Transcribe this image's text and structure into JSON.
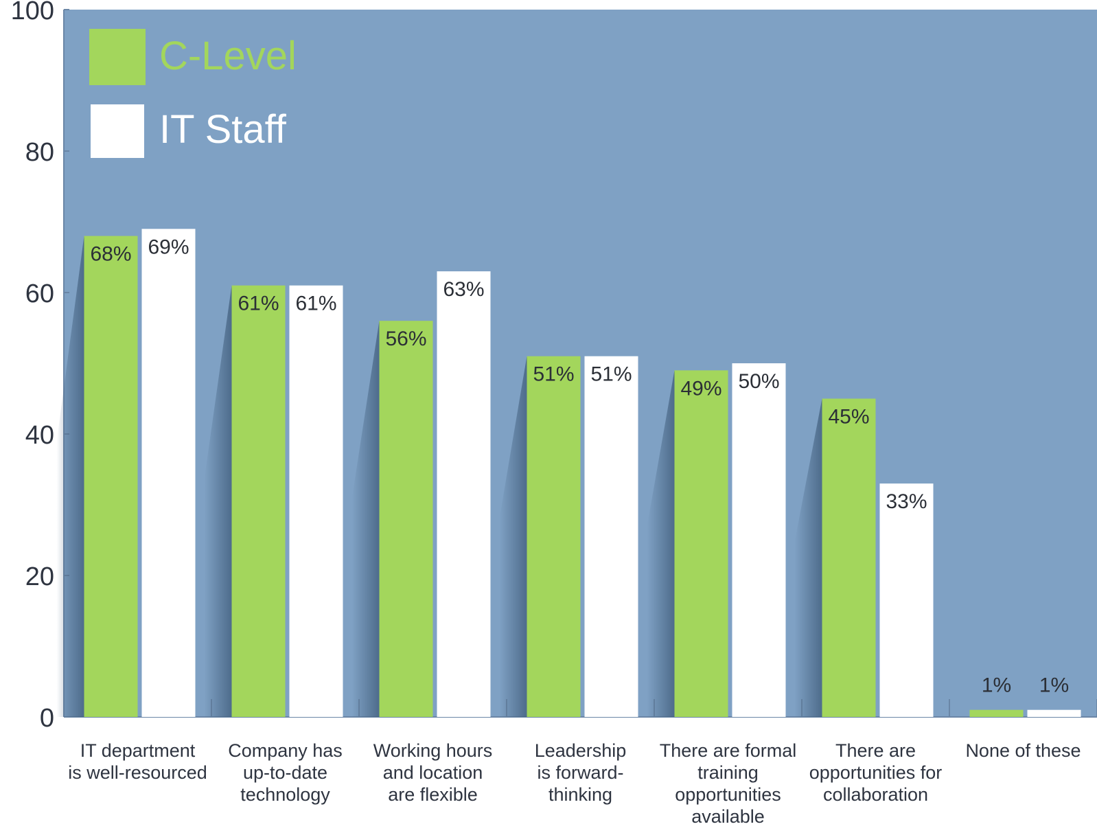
{
  "chart_data": {
    "type": "bar",
    "ylim": [
      0,
      100
    ],
    "yticks": [
      0,
      20,
      40,
      60,
      80,
      100
    ],
    "grid": false,
    "legend_position": "top-left",
    "categories": [
      "IT department\nis well-resourced",
      "Company has\nup-to-date\ntechnology",
      "Working hours\nand location\nare flexible",
      "Leadership\nis forward-\nthinking",
      "There are formal\ntraining\nopportunities\navailable",
      "There are\nopportunities for\ncollaboration",
      "None of these"
    ],
    "series": [
      {
        "name": "C-Level",
        "color": "#a3d65c",
        "values": [
          68,
          61,
          56,
          51,
          49,
          45,
          1
        ],
        "labels": [
          "68%",
          "61%",
          "56%",
          "51%",
          "49%",
          "45%",
          "1%"
        ]
      },
      {
        "name": "IT Staff",
        "color": "#ffffff",
        "values": [
          69,
          61,
          63,
          51,
          50,
          33,
          1
        ],
        "labels": [
          "69%",
          "61%",
          "63%",
          "51%",
          "50%",
          "33%",
          "1%"
        ]
      }
    ],
    "background_color": "#7fa1c4"
  }
}
